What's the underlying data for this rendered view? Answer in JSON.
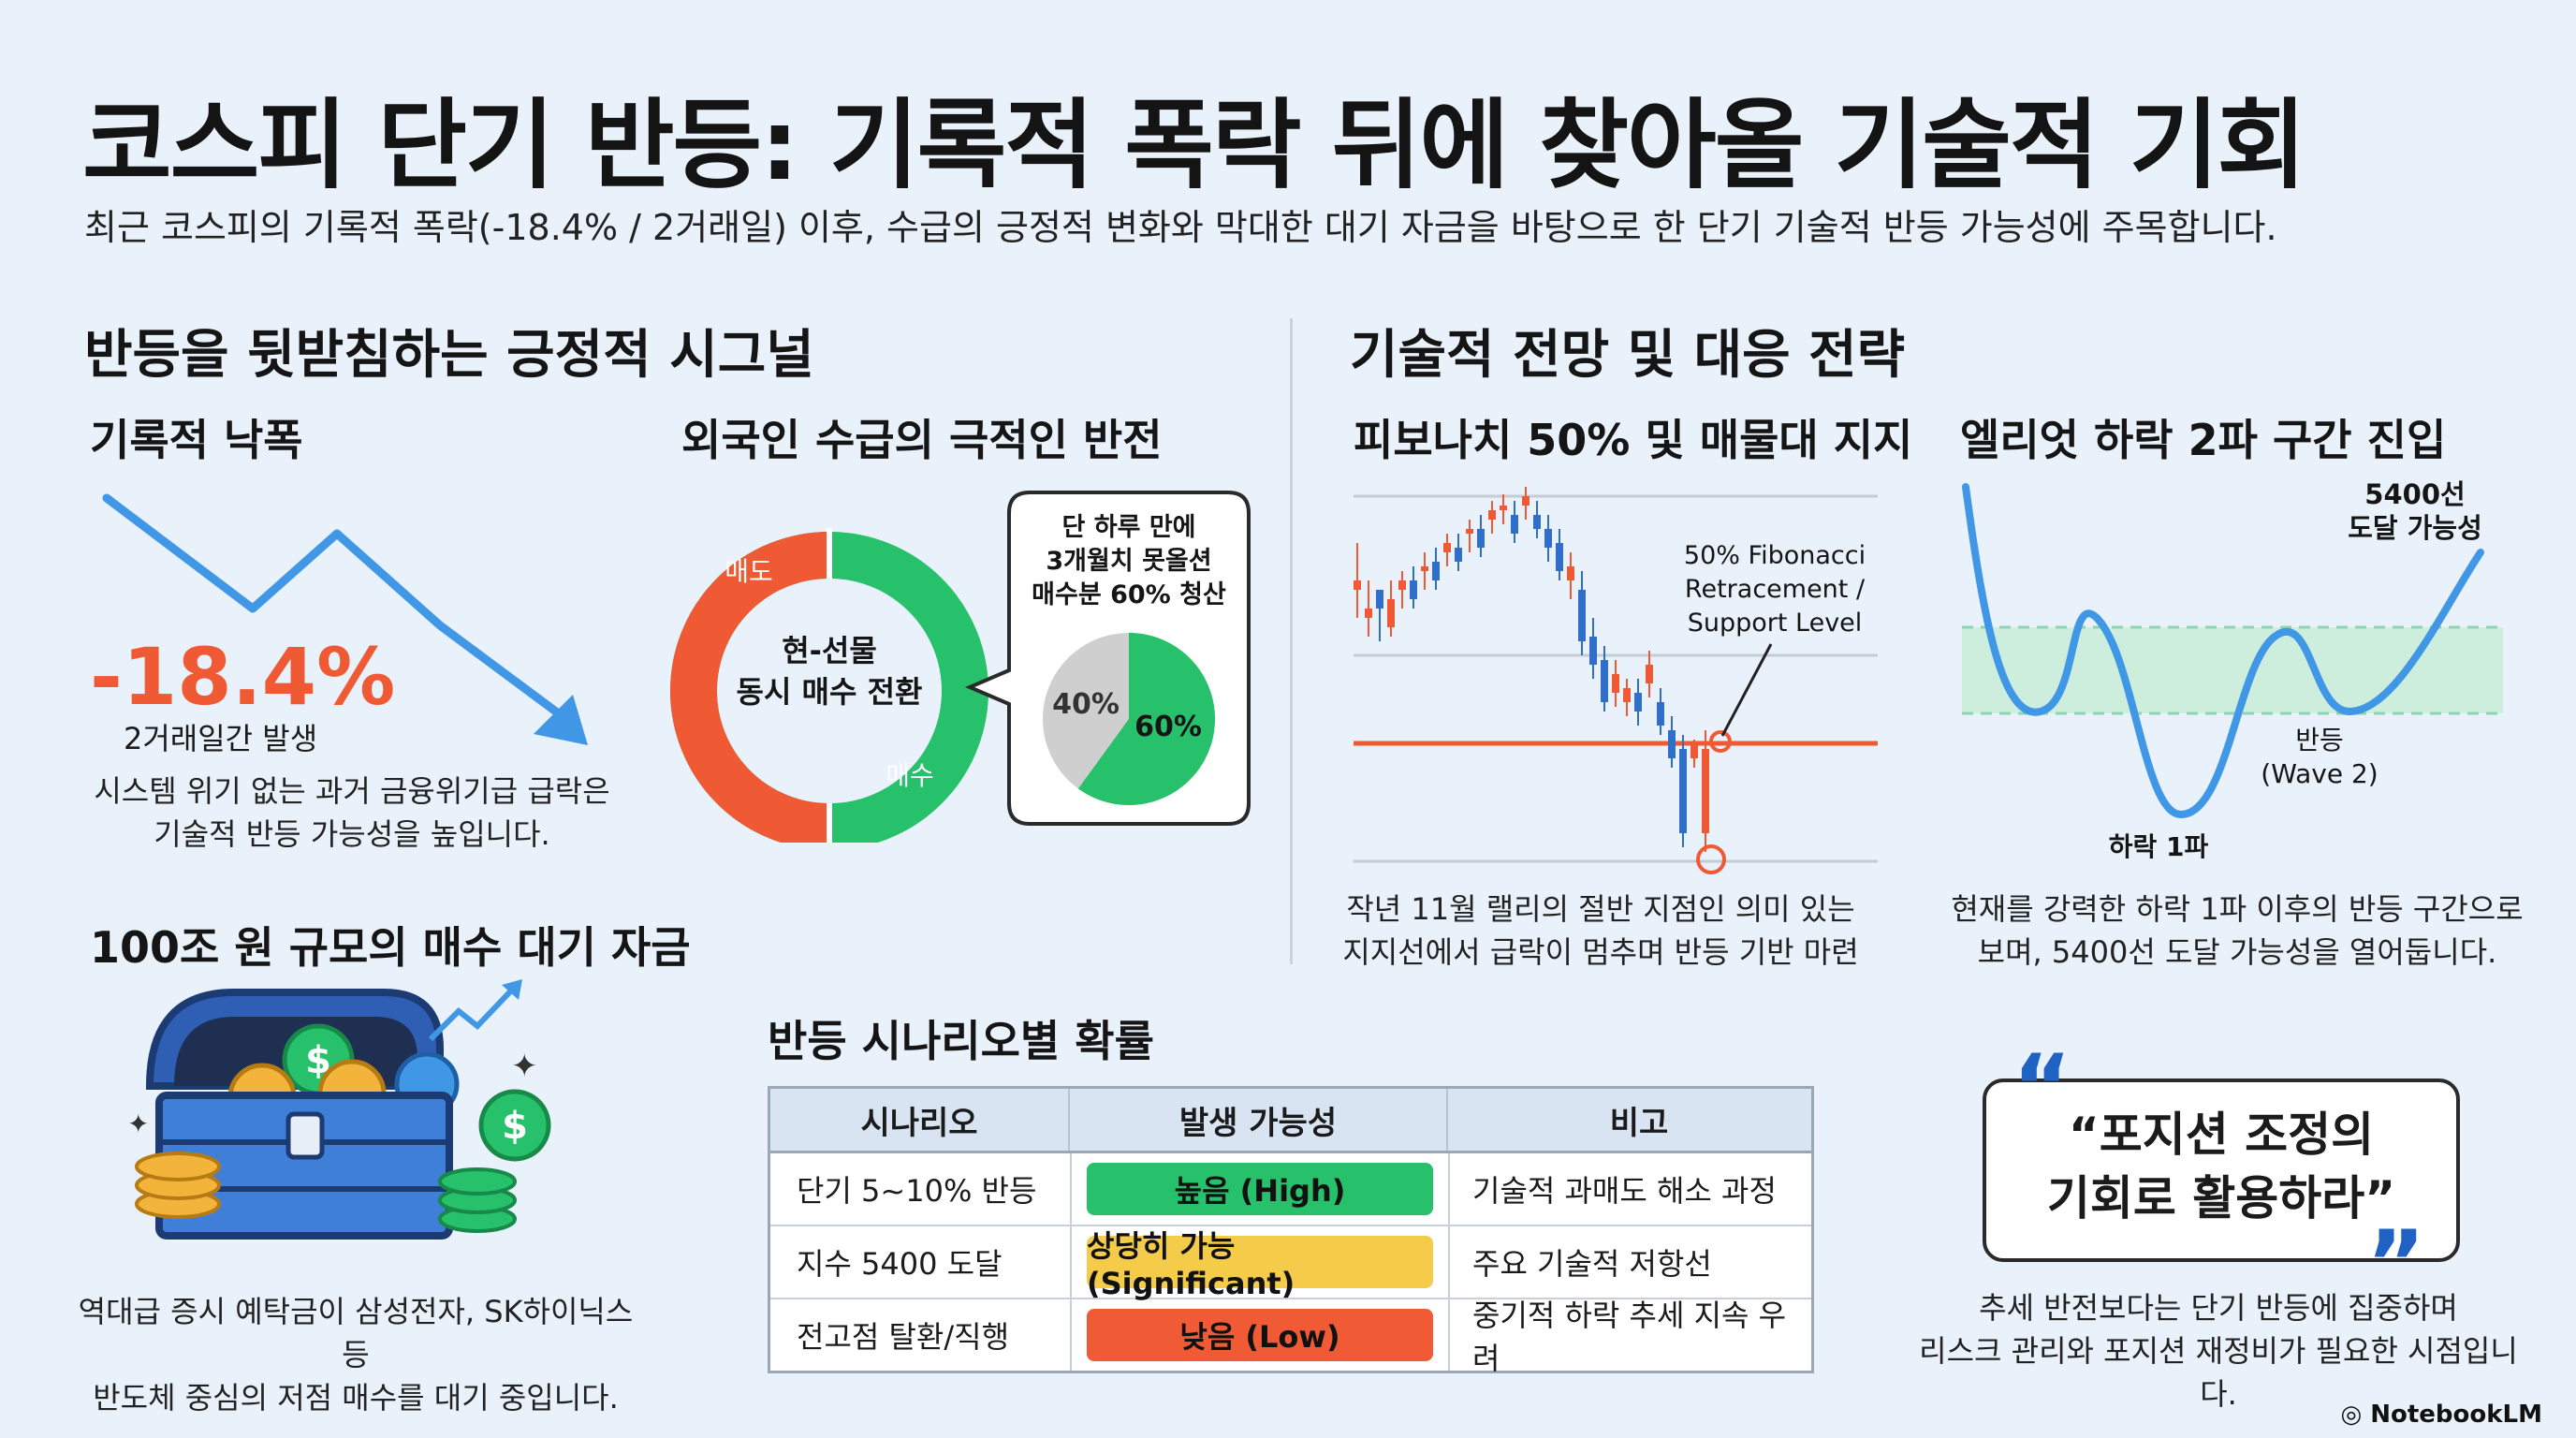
{
  "title": "코스피 단기 반등: 기록적 폭락 뒤에 찾아올 기술적 기회",
  "subtitle": "최근 코스피의 기록적 폭락(-18.4% / 2거래일) 이후, 수급의 긍정적 변화와 막대한 대기 자금을 바탕으로 한 단기 기술적 반등 가능성에 주목합니다.",
  "left_section": {
    "heading": "반등을 뒷받침하는 긍정적 시그널",
    "drop": {
      "heading": "기록적 낙폭",
      "value": "-18.4%",
      "value_caption": "2거래일간 발생",
      "desc_line1": "시스템 위기 없는 과거 금융위기급 급락은",
      "desc_line2": "기술적 반등 가능성을 높입니다."
    },
    "foreign": {
      "heading": "외국인 수급의 극적인 반전",
      "donut_sell_label": "매도",
      "donut_buy_label": "매수",
      "donut_center_line1": "현-선물",
      "donut_center_line2": "동시 매수 전환",
      "bubble_line1": "단 하루 만에",
      "bubble_line2": "3개월치 못올션",
      "bubble_line3": "매수분 60% 청산",
      "pie_values": [
        40,
        60
      ],
      "pie_label_small": "40%",
      "pie_label_large": "60%"
    },
    "cash": {
      "heading": "100조 원 규모의 매수 대기 자금",
      "desc_line1": "역대급 증시 예탁금이 삼성전자, SK하이닉스 등",
      "desc_line2": "반도체 중심의 저점 매수를 대기 중입니다."
    }
  },
  "right_section": {
    "heading": "기술적 전망 및 대응 전략",
    "fib": {
      "heading": "피보나치 50% 및 매물대 지지",
      "annotation_line1": "50% Fibonacci",
      "annotation_line2": "Retracement /",
      "annotation_line3": "Support Level",
      "desc_line1": "작년 11월 랠리의 절반 지점인 의미 있는",
      "desc_line2": "지지선에서 급락이 멈추며 반등 기반 마련"
    },
    "elliott": {
      "heading": "엘리엇 하락 2파 구간 진입",
      "target_line1": "5400선",
      "target_line2": "도달 가능성",
      "wave2_line1": "반등",
      "wave2_line2": "(Wave 2)",
      "wave1_label": "하락 1파",
      "desc_line1": "현재를 강력한 하락 1파 이후의 반등 구간으로",
      "desc_line2": "보며, 5400선 도달 가능성을 열어둡니다."
    }
  },
  "scenario": {
    "heading": "반등 시나리오별 확률",
    "columns": [
      "시나리오",
      "발생 가능성",
      "비고"
    ],
    "rows": [
      {
        "scenario": "단기 5~10% 반등",
        "probability": "높음 (High)",
        "note": "기술적 과매도 해소 과정",
        "color": "#27c06b"
      },
      {
        "scenario": "지수 5400 도달",
        "probability": "상당히 가능 (Significant)",
        "note": "주요 기술적 저항선",
        "color": "#f5cc4a"
      },
      {
        "scenario": "전고점 탈환/직행",
        "probability": "낮음 (Low)",
        "note": "중기적 하락 추세 지속 우려",
        "color": "#f05a34"
      }
    ]
  },
  "quote": {
    "line1": "“포지션 조정의",
    "line2": "기회로 활용하라”",
    "desc_line1": "추세 반전보다는 단기 반등에 집중하며",
    "desc_line2": "리스크 관리와 포지션 재정비가 필요한 시점입니다."
  },
  "logo_text": "NotebookLM",
  "colors": {
    "background": "#e9f1fa",
    "red": "#ef5a35",
    "green": "#27c06b",
    "blue": "#3f97e6",
    "yellow": "#f5cc4a"
  }
}
